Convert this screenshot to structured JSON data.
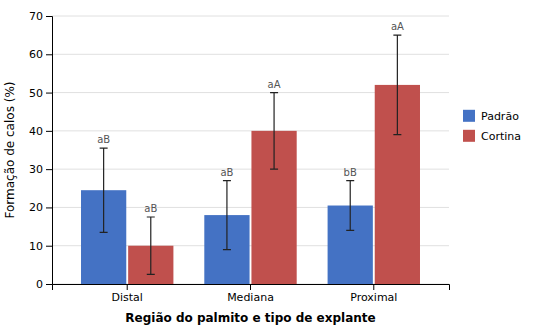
{
  "chart_data": {
    "type": "bar",
    "categories": [
      "Distal",
      "Mediana",
      "Proximal"
    ],
    "series": [
      {
        "name": "Padrão",
        "color": "#4472C4",
        "values": [
          24.5,
          18.0,
          20.5
        ],
        "errors": [
          11.0,
          9.0,
          6.5
        ],
        "annotations": [
          "aB",
          "aB",
          "bB"
        ]
      },
      {
        "name": "Cortina",
        "color": "#C0504D",
        "values": [
          10.0,
          40.0,
          52.0
        ],
        "errors": [
          7.5,
          10.0,
          13.0
        ],
        "annotations": [
          "aB",
          "aA",
          "aA"
        ]
      }
    ],
    "xlabel": "Região do palmito e tipo de explante",
    "ylabel": "Formação de calos (%)",
    "ylim": [
      0,
      70
    ],
    "yticks": [
      0,
      10,
      20,
      30,
      40,
      50,
      60,
      70
    ],
    "grid": true,
    "legend": "right"
  }
}
